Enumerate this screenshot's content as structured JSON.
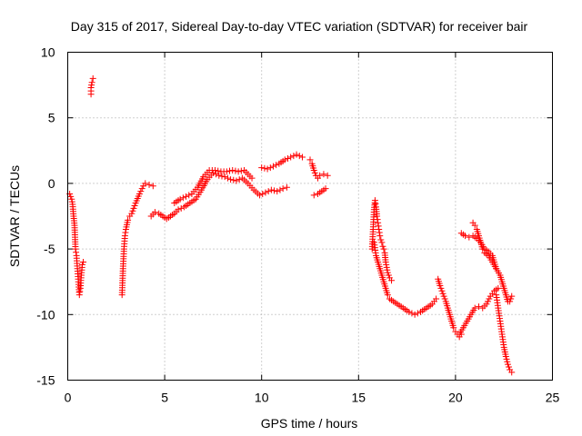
{
  "chart_data": {
    "type": "scatter",
    "title": "Day 315 of 2017, Sidereal Day-to-day VTEC variation (SDTVAR) for receiver bair",
    "xlabel": "GPS time / hours",
    "ylabel": "SDTVAR / TECUs",
    "xlim": [
      0,
      25
    ],
    "ylim": [
      -15,
      10
    ],
    "x_ticks": [
      0,
      5,
      10,
      15,
      20,
      25
    ],
    "x_tick_labels": [
      "0",
      "5",
      "10",
      "15",
      "20",
      "25"
    ],
    "y_ticks": [
      -15,
      -10,
      -5,
      0,
      5,
      10
    ],
    "y_tick_labels": [
      "-15",
      "-10",
      "-5",
      "0",
      "5",
      "10"
    ],
    "grid": true,
    "marker": "+",
    "color": "#ff0000",
    "series": [
      {
        "name": "s1",
        "x": [
          0.1,
          0.15,
          0.2,
          0.25,
          0.3,
          0.35,
          0.4,
          0.45,
          0.5,
          0.55,
          0.6,
          0.65,
          0.7,
          0.75,
          0.8
        ],
        "y": [
          -0.8,
          -1.0,
          -1.2,
          -1.6,
          -2.5,
          -3.2,
          -5.0,
          -5.5,
          -6.5,
          -7.5,
          -8.5,
          -8.0,
          -7.0,
          -6.2,
          -6.0
        ]
      },
      {
        "name": "s2",
        "x": [
          1.2,
          1.2,
          1.25,
          1.3
        ],
        "y": [
          6.8,
          7.3,
          7.7,
          8.0
        ]
      },
      {
        "name": "s3",
        "x": [
          2.8,
          2.85,
          2.9,
          2.95,
          3.0,
          3.1,
          3.2,
          3.3,
          3.5,
          3.7,
          3.9,
          4.0,
          4.2,
          4.4
        ],
        "y": [
          -8.5,
          -6.5,
          -5.0,
          -4.0,
          -3.5,
          -2.8,
          -2.5,
          -2.3,
          -1.5,
          -0.8,
          -0.2,
          0.0,
          -0.1,
          -0.2
        ]
      },
      {
        "name": "s4",
        "x": [
          4.3,
          4.5,
          4.7,
          4.9,
          5.1,
          5.3,
          5.5,
          5.7,
          6.0,
          6.3,
          6.6,
          6.9,
          7.2,
          7.5,
          7.8,
          8.1,
          8.4,
          8.7,
          9.0,
          9.3,
          9.6,
          9.9,
          10.2,
          10.5,
          10.8,
          11.1,
          11.3
        ],
        "y": [
          -2.5,
          -2.2,
          -2.3,
          -2.5,
          -2.7,
          -2.5,
          -2.3,
          -2.0,
          -1.8,
          -1.5,
          -1.2,
          -0.5,
          0.3,
          0.8,
          0.6,
          0.5,
          0.3,
          0.2,
          0.4,
          0.0,
          -0.5,
          -0.9,
          -0.7,
          -0.5,
          -0.6,
          -0.4,
          -0.3
        ]
      },
      {
        "name": "s5",
        "x": [
          5.5,
          5.8,
          6.1,
          6.4,
          6.7,
          7.0,
          7.3,
          7.6,
          7.9,
          8.2,
          8.5,
          8.8,
          9.1,
          9.3,
          9.5
        ],
        "y": [
          -1.5,
          -1.2,
          -1.0,
          -0.8,
          -0.3,
          0.5,
          1.0,
          1.0,
          0.9,
          0.9,
          1.0,
          0.9,
          1.0,
          0.7,
          0.4
        ]
      },
      {
        "name": "s6",
        "x": [
          10.0,
          10.3,
          10.6,
          10.9,
          11.2,
          11.5,
          11.8,
          12.1
        ],
        "y": [
          1.2,
          1.1,
          1.3,
          1.5,
          1.8,
          2.0,
          2.2,
          2.0
        ]
      },
      {
        "name": "s7",
        "x": [
          12.5,
          12.6,
          12.7,
          12.8,
          12.9,
          13.0,
          13.2,
          13.4
        ],
        "y": [
          1.8,
          1.5,
          1.0,
          0.6,
          0.4,
          0.6,
          0.7,
          0.6
        ]
      },
      {
        "name": "s8",
        "x": [
          12.7,
          12.9,
          13.1,
          13.3
        ],
        "y": [
          -0.9,
          -0.8,
          -0.6,
          -0.4
        ]
      },
      {
        "name": "s9",
        "x": [
          15.7,
          15.75,
          15.8,
          15.85,
          15.9,
          15.95,
          16.0,
          16.05,
          16.1,
          16.15,
          16.2,
          16.25,
          16.3,
          16.35,
          16.4,
          16.5,
          16.6,
          16.7
        ],
        "y": [
          -5.0,
          -3.5,
          -2.0,
          -1.3,
          -1.8,
          -2.5,
          -3.0,
          -3.5,
          -4.0,
          -4.3,
          -4.5,
          -4.8,
          -5.0,
          -5.3,
          -6.0,
          -6.8,
          -7.2,
          -7.4
        ]
      },
      {
        "name": "s10",
        "x": [
          15.8,
          15.9,
          16.0,
          16.1,
          16.2,
          16.3,
          16.4,
          16.5,
          16.6,
          16.8,
          17.0,
          17.3,
          17.6,
          17.9,
          18.2,
          18.5,
          18.8,
          19.0
        ],
        "y": [
          -4.5,
          -5.5,
          -6.0,
          -6.5,
          -7.0,
          -7.5,
          -8.0,
          -8.5,
          -8.8,
          -9.0,
          -9.2,
          -9.5,
          -9.8,
          -10.0,
          -9.8,
          -9.5,
          -9.2,
          -8.8
        ]
      },
      {
        "name": "s11",
        "x": [
          19.1,
          19.2,
          19.3,
          19.4,
          19.5,
          19.6,
          19.7,
          19.8,
          19.9,
          20.0,
          20.1,
          20.2,
          20.3
        ],
        "y": [
          -7.3,
          -7.8,
          -8.2,
          -8.6,
          -9.0,
          -9.5,
          -10.0,
          -10.5,
          -11.0,
          -11.3,
          -11.5,
          -11.7,
          -11.5
        ]
      },
      {
        "name": "s12",
        "x": [
          20.2,
          20.4,
          20.6,
          20.8,
          21.0,
          21.2,
          21.4,
          21.6,
          21.8,
          22.0,
          22.2
        ],
        "y": [
          -11.5,
          -11.0,
          -10.5,
          -10.0,
          -9.5,
          -9.4,
          -9.5,
          -9.2,
          -8.6,
          -8.2,
          -8.0
        ]
      },
      {
        "name": "s13",
        "x": [
          20.3,
          20.5,
          20.7,
          20.9,
          21.1,
          21.3,
          21.5,
          21.7,
          21.9,
          22.0,
          22.1
        ],
        "y": [
          -3.8,
          -4.0,
          -4.1,
          -4.0,
          -4.2,
          -4.5,
          -5.0,
          -5.2,
          -5.5,
          -6.0,
          -6.5
        ]
      },
      {
        "name": "s14",
        "x": [
          20.9,
          21.0,
          21.1,
          21.2,
          21.3,
          21.4,
          21.5,
          21.7,
          21.9,
          22.1,
          22.3,
          22.5,
          22.6,
          22.7,
          22.8,
          22.9
        ],
        "y": [
          -3.0,
          -3.2,
          -3.5,
          -4.0,
          -4.5,
          -5.0,
          -5.3,
          -5.5,
          -6.0,
          -6.5,
          -7.0,
          -8.0,
          -8.5,
          -9.0,
          -9.0,
          -8.6
        ]
      },
      {
        "name": "s15",
        "x": [
          22.1,
          22.2,
          22.3,
          22.4,
          22.5,
          22.6,
          22.7,
          22.8,
          22.9
        ],
        "y": [
          -8.5,
          -9.5,
          -10.5,
          -11.5,
          -12.5,
          -13.2,
          -13.8,
          -14.2,
          -14.4
        ]
      }
    ]
  }
}
